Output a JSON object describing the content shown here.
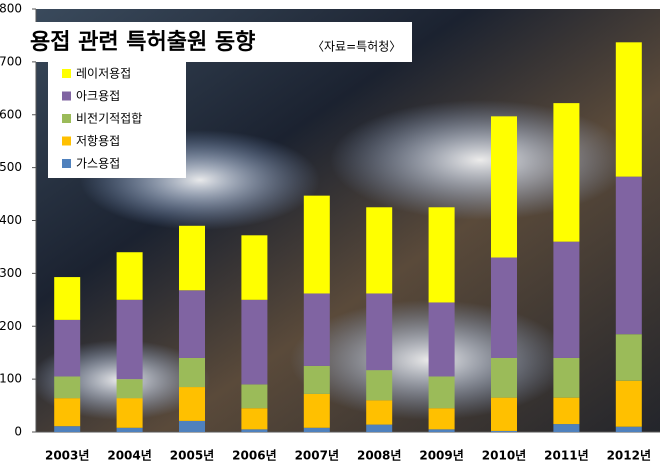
{
  "chart_data": {
    "type": "stacked-bar",
    "title": "용접 관련 특허출원 동향",
    "subtitle": "〈자료=특허청〉",
    "categories": [
      "2003년",
      "2004년",
      "2005년",
      "2006년",
      "2007년",
      "2008년",
      "2009년",
      "2010년",
      "2011년",
      "2012년"
    ],
    "series": [
      {
        "name": "가스용접",
        "color": "#4f81bd",
        "values": [
          11,
          8,
          21,
          5,
          8,
          14,
          5,
          2,
          15,
          10
        ]
      },
      {
        "name": "저항용접",
        "color": "#ffc000",
        "values": [
          53,
          56,
          64,
          40,
          64,
          46,
          40,
          63,
          50,
          87
        ]
      },
      {
        "name": "비전기적접합",
        "color": "#9bbb59",
        "values": [
          41,
          36,
          55,
          45,
          53,
          57,
          60,
          75,
          75,
          88
        ]
      },
      {
        "name": "아크용접",
        "color": "#8064a2",
        "values": [
          107,
          150,
          128,
          160,
          137,
          145,
          140,
          190,
          220,
          298
        ]
      },
      {
        "name": "레이저용접",
        "color": "#ffff00",
        "values": [
          81,
          90,
          122,
          122,
          185,
          163,
          180,
          267,
          262,
          254
        ]
      }
    ],
    "ylim": [
      0,
      800
    ],
    "yticks": [
      0,
      100,
      200,
      300,
      400,
      500,
      600,
      700,
      800
    ]
  }
}
